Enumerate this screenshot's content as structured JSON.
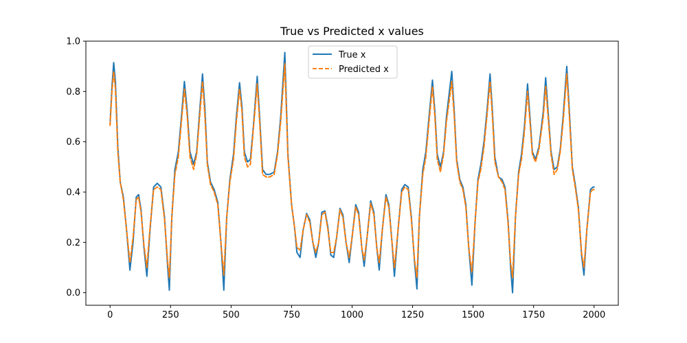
{
  "chart_data": {
    "type": "line",
    "title": "True vs Predicted x values",
    "xlabel": "",
    "ylabel": "",
    "xlim": [
      -100,
      2100
    ],
    "ylim": [
      -0.05,
      1.0
    ],
    "xticks": [
      0,
      250,
      500,
      750,
      1000,
      1250,
      1500,
      1750,
      2000
    ],
    "yticks": [
      0.0,
      0.2,
      0.4,
      0.6,
      0.8,
      1.0
    ],
    "legend_position": "top-center",
    "grid": false,
    "series": [
      {
        "name": "True x",
        "color": "#1f77b4",
        "style": "solid",
        "points": [
          [
            0,
            0.67
          ],
          [
            8,
            0.82
          ],
          [
            15,
            0.915
          ],
          [
            22,
            0.84
          ],
          [
            32,
            0.58
          ],
          [
            42,
            0.44
          ],
          [
            55,
            0.38
          ],
          [
            68,
            0.25
          ],
          [
            82,
            0.09
          ],
          [
            95,
            0.2
          ],
          [
            108,
            0.38
          ],
          [
            118,
            0.39
          ],
          [
            128,
            0.33
          ],
          [
            140,
            0.18
          ],
          [
            152,
            0.065
          ],
          [
            165,
            0.25
          ],
          [
            180,
            0.42
          ],
          [
            195,
            0.435
          ],
          [
            210,
            0.42
          ],
          [
            225,
            0.3
          ],
          [
            238,
            0.1
          ],
          [
            245,
            0.01
          ],
          [
            255,
            0.3
          ],
          [
            268,
            0.49
          ],
          [
            282,
            0.56
          ],
          [
            295,
            0.7
          ],
          [
            307,
            0.84
          ],
          [
            318,
            0.73
          ],
          [
            330,
            0.56
          ],
          [
            345,
            0.51
          ],
          [
            358,
            0.56
          ],
          [
            370,
            0.72
          ],
          [
            382,
            0.87
          ],
          [
            392,
            0.73
          ],
          [
            402,
            0.52
          ],
          [
            415,
            0.44
          ],
          [
            430,
            0.41
          ],
          [
            445,
            0.36
          ],
          [
            458,
            0.2
          ],
          [
            470,
            0.01
          ],
          [
            482,
            0.3
          ],
          [
            495,
            0.45
          ],
          [
            510,
            0.55
          ],
          [
            522,
            0.7
          ],
          [
            535,
            0.835
          ],
          [
            545,
            0.74
          ],
          [
            555,
            0.56
          ],
          [
            568,
            0.52
          ],
          [
            580,
            0.53
          ],
          [
            592,
            0.66
          ],
          [
            608,
            0.86
          ],
          [
            618,
            0.7
          ],
          [
            630,
            0.49
          ],
          [
            645,
            0.47
          ],
          [
            660,
            0.47
          ],
          [
            678,
            0.48
          ],
          [
            692,
            0.56
          ],
          [
            705,
            0.7
          ],
          [
            722,
            0.955
          ],
          [
            735,
            0.55
          ],
          [
            750,
            0.35
          ],
          [
            762,
            0.26
          ],
          [
            772,
            0.16
          ],
          [
            785,
            0.14
          ],
          [
            798,
            0.25
          ],
          [
            812,
            0.315
          ],
          [
            825,
            0.29
          ],
          [
            838,
            0.2
          ],
          [
            850,
            0.14
          ],
          [
            862,
            0.2
          ],
          [
            875,
            0.32
          ],
          [
            888,
            0.325
          ],
          [
            900,
            0.26
          ],
          [
            912,
            0.15
          ],
          [
            924,
            0.14
          ],
          [
            936,
            0.22
          ],
          [
            950,
            0.335
          ],
          [
            962,
            0.31
          ],
          [
            975,
            0.2
          ],
          [
            988,
            0.12
          ],
          [
            1000,
            0.22
          ],
          [
            1015,
            0.35
          ],
          [
            1027,
            0.32
          ],
          [
            1040,
            0.18
          ],
          [
            1050,
            0.105
          ],
          [
            1062,
            0.22
          ],
          [
            1077,
            0.365
          ],
          [
            1090,
            0.32
          ],
          [
            1102,
            0.18
          ],
          [
            1112,
            0.09
          ],
          [
            1125,
            0.25
          ],
          [
            1140,
            0.39
          ],
          [
            1152,
            0.35
          ],
          [
            1165,
            0.2
          ],
          [
            1175,
            0.065
          ],
          [
            1190,
            0.25
          ],
          [
            1205,
            0.41
          ],
          [
            1218,
            0.43
          ],
          [
            1232,
            0.42
          ],
          [
            1245,
            0.3
          ],
          [
            1258,
            0.12
          ],
          [
            1268,
            0.015
          ],
          [
            1278,
            0.3
          ],
          [
            1292,
            0.49
          ],
          [
            1305,
            0.56
          ],
          [
            1318,
            0.7
          ],
          [
            1332,
            0.845
          ],
          [
            1342,
            0.72
          ],
          [
            1352,
            0.55
          ],
          [
            1365,
            0.5
          ],
          [
            1378,
            0.56
          ],
          [
            1390,
            0.7
          ],
          [
            1412,
            0.88
          ],
          [
            1422,
            0.72
          ],
          [
            1432,
            0.53
          ],
          [
            1445,
            0.45
          ],
          [
            1458,
            0.42
          ],
          [
            1470,
            0.35
          ],
          [
            1482,
            0.18
          ],
          [
            1495,
            0.03
          ],
          [
            1508,
            0.28
          ],
          [
            1520,
            0.45
          ],
          [
            1532,
            0.51
          ],
          [
            1545,
            0.6
          ],
          [
            1558,
            0.73
          ],
          [
            1570,
            0.87
          ],
          [
            1580,
            0.72
          ],
          [
            1590,
            0.54
          ],
          [
            1605,
            0.46
          ],
          [
            1620,
            0.45
          ],
          [
            1632,
            0.42
          ],
          [
            1645,
            0.28
          ],
          [
            1655,
            0.1
          ],
          [
            1663,
            0.0
          ],
          [
            1675,
            0.3
          ],
          [
            1688,
            0.48
          ],
          [
            1700,
            0.55
          ],
          [
            1712,
            0.66
          ],
          [
            1725,
            0.83
          ],
          [
            1735,
            0.7
          ],
          [
            1745,
            0.56
          ],
          [
            1758,
            0.53
          ],
          [
            1772,
            0.58
          ],
          [
            1790,
            0.72
          ],
          [
            1800,
            0.855
          ],
          [
            1810,
            0.72
          ],
          [
            1822,
            0.56
          ],
          [
            1835,
            0.49
          ],
          [
            1848,
            0.5
          ],
          [
            1860,
            0.57
          ],
          [
            1872,
            0.7
          ],
          [
            1887,
            0.9
          ],
          [
            1898,
            0.72
          ],
          [
            1910,
            0.5
          ],
          [
            1922,
            0.43
          ],
          [
            1935,
            0.34
          ],
          [
            1948,
            0.15
          ],
          [
            1958,
            0.07
          ],
          [
            1970,
            0.25
          ],
          [
            1985,
            0.41
          ],
          [
            1995,
            0.42
          ],
          [
            2000,
            0.42
          ]
        ]
      },
      {
        "name": "Predicted x",
        "color": "#ff7f0e",
        "style": "dashed",
        "points": [
          [
            0,
            0.665
          ],
          [
            8,
            0.8
          ],
          [
            15,
            0.88
          ],
          [
            22,
            0.81
          ],
          [
            32,
            0.56
          ],
          [
            42,
            0.44
          ],
          [
            55,
            0.37
          ],
          [
            68,
            0.25
          ],
          [
            82,
            0.12
          ],
          [
            95,
            0.22
          ],
          [
            108,
            0.37
          ],
          [
            118,
            0.38
          ],
          [
            128,
            0.32
          ],
          [
            140,
            0.19
          ],
          [
            152,
            0.1
          ],
          [
            165,
            0.26
          ],
          [
            180,
            0.41
          ],
          [
            195,
            0.42
          ],
          [
            210,
            0.41
          ],
          [
            225,
            0.29
          ],
          [
            238,
            0.12
          ],
          [
            245,
            0.06
          ],
          [
            255,
            0.3
          ],
          [
            268,
            0.47
          ],
          [
            282,
            0.54
          ],
          [
            295,
            0.68
          ],
          [
            307,
            0.81
          ],
          [
            318,
            0.71
          ],
          [
            330,
            0.54
          ],
          [
            345,
            0.49
          ],
          [
            358,
            0.55
          ],
          [
            370,
            0.7
          ],
          [
            382,
            0.84
          ],
          [
            392,
            0.7
          ],
          [
            402,
            0.51
          ],
          [
            415,
            0.43
          ],
          [
            430,
            0.4
          ],
          [
            445,
            0.35
          ],
          [
            458,
            0.2
          ],
          [
            470,
            0.07
          ],
          [
            482,
            0.3
          ],
          [
            495,
            0.44
          ],
          [
            510,
            0.53
          ],
          [
            522,
            0.68
          ],
          [
            535,
            0.81
          ],
          [
            545,
            0.72
          ],
          [
            555,
            0.54
          ],
          [
            568,
            0.5
          ],
          [
            580,
            0.51
          ],
          [
            592,
            0.65
          ],
          [
            608,
            0.83
          ],
          [
            618,
            0.68
          ],
          [
            630,
            0.47
          ],
          [
            645,
            0.46
          ],
          [
            660,
            0.46
          ],
          [
            678,
            0.47
          ],
          [
            692,
            0.55
          ],
          [
            705,
            0.68
          ],
          [
            722,
            0.91
          ],
          [
            735,
            0.54
          ],
          [
            750,
            0.35
          ],
          [
            762,
            0.26
          ],
          [
            772,
            0.18
          ],
          [
            785,
            0.17
          ],
          [
            798,
            0.25
          ],
          [
            812,
            0.31
          ],
          [
            825,
            0.28
          ],
          [
            838,
            0.2
          ],
          [
            850,
            0.16
          ],
          [
            862,
            0.2
          ],
          [
            875,
            0.31
          ],
          [
            888,
            0.32
          ],
          [
            900,
            0.25
          ],
          [
            912,
            0.16
          ],
          [
            924,
            0.16
          ],
          [
            936,
            0.22
          ],
          [
            950,
            0.33
          ],
          [
            962,
            0.3
          ],
          [
            975,
            0.2
          ],
          [
            988,
            0.14
          ],
          [
            1000,
            0.22
          ],
          [
            1015,
            0.34
          ],
          [
            1027,
            0.31
          ],
          [
            1040,
            0.18
          ],
          [
            1050,
            0.13
          ],
          [
            1062,
            0.22
          ],
          [
            1077,
            0.355
          ],
          [
            1090,
            0.31
          ],
          [
            1102,
            0.18
          ],
          [
            1112,
            0.12
          ],
          [
            1125,
            0.25
          ],
          [
            1140,
            0.38
          ],
          [
            1152,
            0.34
          ],
          [
            1165,
            0.2
          ],
          [
            1175,
            0.1
          ],
          [
            1190,
            0.25
          ],
          [
            1205,
            0.4
          ],
          [
            1218,
            0.42
          ],
          [
            1232,
            0.41
          ],
          [
            1245,
            0.29
          ],
          [
            1258,
            0.13
          ],
          [
            1268,
            0.06
          ],
          [
            1278,
            0.3
          ],
          [
            1292,
            0.47
          ],
          [
            1305,
            0.54
          ],
          [
            1318,
            0.68
          ],
          [
            1332,
            0.82
          ],
          [
            1342,
            0.7
          ],
          [
            1352,
            0.53
          ],
          [
            1365,
            0.48
          ],
          [
            1378,
            0.55
          ],
          [
            1390,
            0.68
          ],
          [
            1412,
            0.84
          ],
          [
            1422,
            0.7
          ],
          [
            1432,
            0.52
          ],
          [
            1445,
            0.44
          ],
          [
            1458,
            0.41
          ],
          [
            1470,
            0.34
          ],
          [
            1482,
            0.18
          ],
          [
            1495,
            0.08
          ],
          [
            1508,
            0.28
          ],
          [
            1520,
            0.44
          ],
          [
            1532,
            0.49
          ],
          [
            1545,
            0.58
          ],
          [
            1558,
            0.71
          ],
          [
            1570,
            0.84
          ],
          [
            1580,
            0.7
          ],
          [
            1590,
            0.52
          ],
          [
            1605,
            0.46
          ],
          [
            1620,
            0.44
          ],
          [
            1632,
            0.41
          ],
          [
            1645,
            0.27
          ],
          [
            1655,
            0.12
          ],
          [
            1663,
            0.06
          ],
          [
            1675,
            0.3
          ],
          [
            1688,
            0.47
          ],
          [
            1700,
            0.53
          ],
          [
            1712,
            0.64
          ],
          [
            1725,
            0.8
          ],
          [
            1735,
            0.68
          ],
          [
            1745,
            0.55
          ],
          [
            1758,
            0.52
          ],
          [
            1772,
            0.57
          ],
          [
            1790,
            0.7
          ],
          [
            1800,
            0.82
          ],
          [
            1810,
            0.7
          ],
          [
            1822,
            0.55
          ],
          [
            1835,
            0.47
          ],
          [
            1848,
            0.49
          ],
          [
            1860,
            0.56
          ],
          [
            1872,
            0.68
          ],
          [
            1887,
            0.87
          ],
          [
            1898,
            0.7
          ],
          [
            1910,
            0.49
          ],
          [
            1922,
            0.42
          ],
          [
            1935,
            0.33
          ],
          [
            1948,
            0.16
          ],
          [
            1958,
            0.1
          ],
          [
            1970,
            0.25
          ],
          [
            1985,
            0.4
          ],
          [
            1995,
            0.41
          ],
          [
            2000,
            0.41
          ]
        ]
      }
    ]
  }
}
